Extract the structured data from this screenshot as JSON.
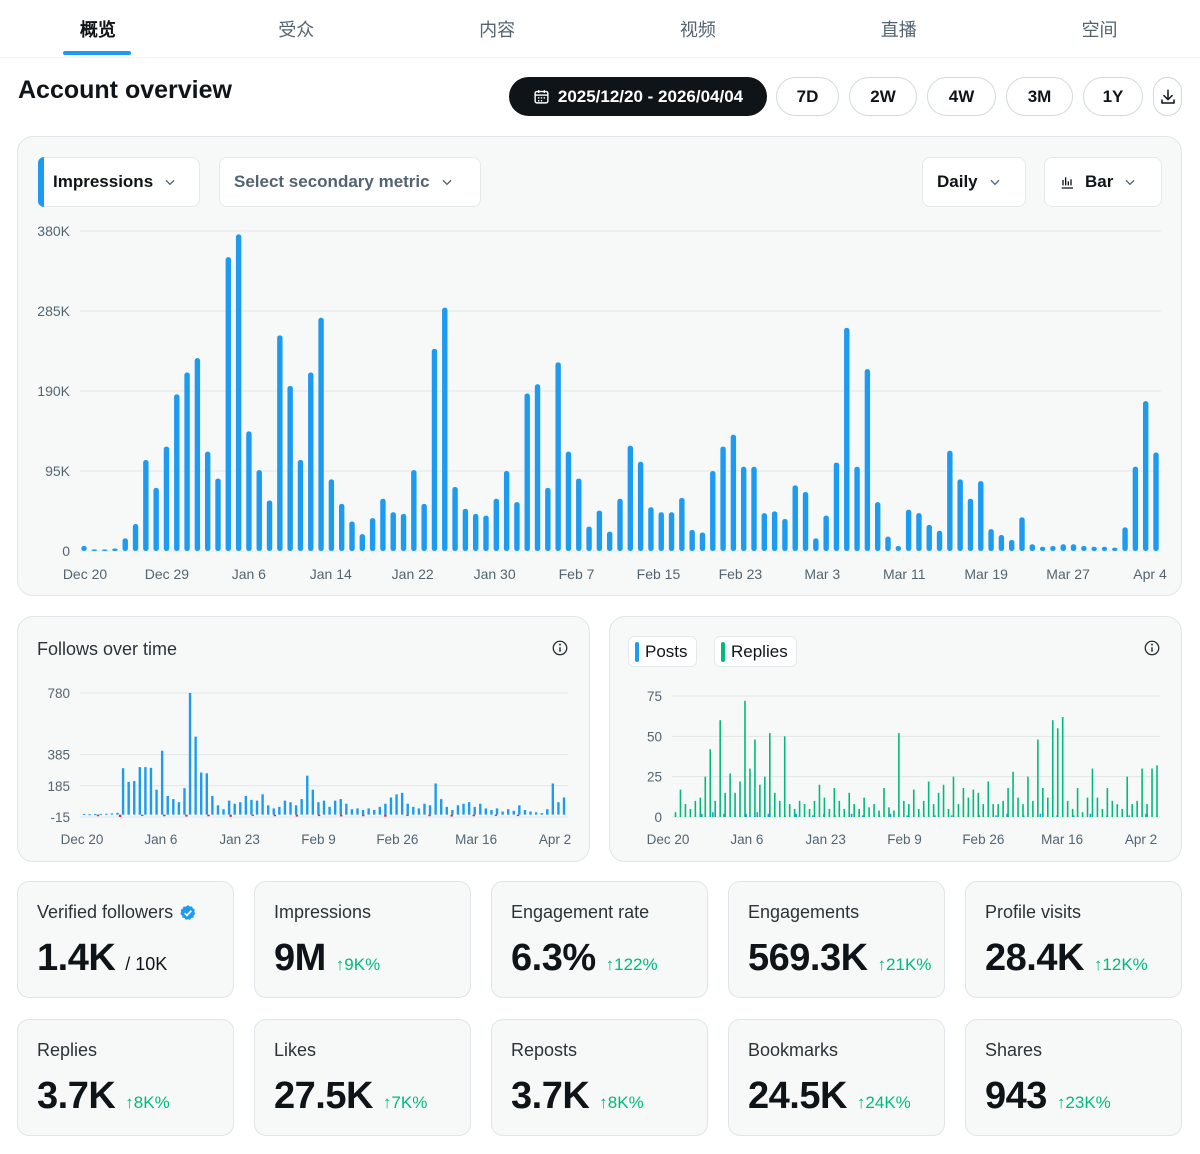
{
  "tabs": [
    "概览",
    "受众",
    "内容",
    "视频",
    "直播",
    "空间"
  ],
  "header": {
    "title": "Account overview",
    "date_range": "2025/12/20 - 2026/04/04",
    "ranges": [
      "7D",
      "2W",
      "4W",
      "3M",
      "1Y"
    ]
  },
  "main_chart": {
    "primary_metric": "Impressions",
    "secondary_metric": "Select secondary metric",
    "interval": "Daily",
    "chart_type": "Bar"
  },
  "follows": {
    "title": "Follows over time"
  },
  "posts_replies": {
    "legend": [
      "Posts",
      "Replies"
    ]
  },
  "colors": {
    "accent": "#1d9bf0",
    "replies": "#00ba7c",
    "positive": "#00ba7c",
    "negative": "#f4212e",
    "dark": "#0f1419"
  },
  "chart_data": [
    {
      "type": "bar",
      "title": "Impressions",
      "ylim": [
        0,
        380000
      ],
      "yticks": [
        "0",
        "95K",
        "190K",
        "285K",
        "380K"
      ],
      "ytick_values": [
        0,
        95000,
        190000,
        285000,
        380000
      ],
      "xticks": [
        "Dec 20",
        "Dec 29",
        "Jan 6",
        "Jan 14",
        "Jan 22",
        "Jan 30",
        "Feb 7",
        "Feb 15",
        "Feb 23",
        "Mar 3",
        "Mar 11",
        "Mar 19",
        "Mar 27",
        "Apr 4"
      ],
      "values": [
        6,
        2,
        2,
        3,
        15,
        32,
        108,
        75,
        124,
        186,
        212,
        229,
        118,
        86,
        349,
        376,
        142,
        96,
        60,
        256,
        196,
        108,
        212,
        277,
        85,
        56,
        35,
        20,
        39,
        62,
        46,
        44,
        96,
        56,
        240,
        289,
        76,
        50,
        44,
        42,
        62,
        95,
        58,
        187,
        198,
        75,
        224,
        118,
        86,
        29,
        48,
        23,
        62,
        125,
        106,
        52,
        46,
        46,
        63,
        25,
        22,
        95,
        124,
        138,
        100,
        100,
        45,
        47,
        38,
        78,
        70,
        15,
        42,
        105,
        265,
        100,
        216,
        58,
        17,
        6,
        49,
        45,
        31,
        24,
        119,
        85,
        62,
        83,
        26,
        19,
        13,
        40,
        8,
        5,
        6,
        8,
        8,
        6,
        5,
        5,
        4,
        28,
        100,
        178,
        117
      ]
    },
    {
      "type": "bar",
      "title": "Follows over time",
      "ylim": [
        -15,
        780
      ],
      "yticks": [
        "-15",
        "185",
        "385",
        "780"
      ],
      "ytick_values": [
        -15,
        185,
        385,
        780
      ],
      "xticks": [
        "Dec 20",
        "Jan 6",
        "Jan 23",
        "Feb 9",
        "Feb 26",
        "Mar 16",
        "Apr 2"
      ],
      "values": [
        5,
        3,
        4,
        5,
        6,
        8,
        12,
        298,
        210,
        215,
        305,
        305,
        300,
        160,
        410,
        120,
        100,
        80,
        170,
        780,
        500,
        270,
        265,
        120,
        60,
        35,
        90,
        70,
        80,
        120,
        95,
        90,
        130,
        60,
        40,
        50,
        90,
        80,
        60,
        100,
        250,
        160,
        80,
        90,
        50,
        90,
        100,
        70,
        35,
        40,
        30,
        40,
        30,
        50,
        70,
        110,
        130,
        140,
        70,
        50,
        40,
        70,
        60,
        200,
        100,
        50,
        30,
        60,
        70,
        80,
        50,
        70,
        40,
        30,
        40,
        20,
        35,
        25,
        60,
        30,
        20,
        15,
        10,
        35,
        200,
        80,
        110
      ],
      "negatives": [
        -10,
        -15,
        -8,
        -10,
        -12,
        -10,
        -14,
        -8,
        -10,
        -12,
        -9,
        -11,
        -10,
        -13,
        -8,
        -10,
        -12,
        -10,
        -8,
        -9
      ]
    },
    {
      "type": "bar",
      "title": "Posts / Replies",
      "ylim": [
        0,
        75
      ],
      "yticks": [
        "0",
        "25",
        "50",
        "75"
      ],
      "ytick_values": [
        0,
        25,
        50,
        75
      ],
      "xticks": [
        "Dec 20",
        "Jan 6",
        "Jan 23",
        "Feb 9",
        "Feb 26",
        "Mar 16",
        "Apr 2"
      ],
      "series": [
        {
          "name": "Posts",
          "values": [
            0,
            0,
            0,
            0,
            0,
            2,
            0,
            3,
            0,
            2,
            0,
            1,
            0,
            2,
            0,
            3,
            0,
            2,
            0,
            0,
            1,
            0,
            2,
            0,
            0,
            1,
            0,
            2,
            0,
            1,
            0,
            0,
            2,
            0,
            1,
            0,
            0,
            1,
            0,
            2,
            0,
            0,
            1,
            0,
            0,
            2,
            0,
            1,
            0,
            0,
            1,
            0,
            0,
            2,
            0,
            1,
            0,
            0,
            1,
            0,
            2,
            0,
            0,
            1,
            0,
            0,
            2,
            0,
            0,
            1,
            0,
            0,
            1,
            0,
            0,
            2,
            0,
            0,
            1,
            0,
            0,
            0,
            1,
            0,
            0,
            2,
            0,
            1
          ]
        },
        {
          "name": "Replies",
          "values": [
            3,
            17,
            8,
            5,
            10,
            12,
            25,
            42,
            10,
            60,
            15,
            27,
            15,
            22,
            72,
            30,
            48,
            20,
            25,
            52,
            15,
            10,
            50,
            8,
            5,
            10,
            8,
            5,
            10,
            20,
            12,
            5,
            18,
            10,
            5,
            15,
            8,
            5,
            12,
            6,
            8,
            4,
            18,
            6,
            4,
            52,
            10,
            8,
            17,
            5,
            10,
            22,
            8,
            15,
            20,
            5,
            25,
            8,
            18,
            12,
            17,
            15,
            8,
            22,
            8,
            8,
            10,
            18,
            28,
            12,
            8,
            25,
            10,
            48,
            18,
            12,
            60,
            55,
            62,
            10,
            5,
            18,
            3,
            12,
            30,
            12,
            5,
            18,
            10,
            8,
            5,
            25,
            8,
            10,
            30,
            8,
            30,
            32
          ]
        }
      ]
    }
  ],
  "stats": [
    {
      "label": "Verified followers",
      "value": "1.4K",
      "sub": "/ 10K",
      "delta": "",
      "verified": true
    },
    {
      "label": "Impressions",
      "value": "9M",
      "sub": "",
      "delta": "9K%"
    },
    {
      "label": "Engagement rate",
      "value": "6.3%",
      "sub": "",
      "delta": "122%"
    },
    {
      "label": "Engagements",
      "value": "569.3K",
      "sub": "",
      "delta": "21K%"
    },
    {
      "label": "Profile visits",
      "value": "28.4K",
      "sub": "",
      "delta": "12K%"
    },
    {
      "label": "Replies",
      "value": "3.7K",
      "sub": "",
      "delta": "8K%"
    },
    {
      "label": "Likes",
      "value": "27.5K",
      "sub": "",
      "delta": "7K%"
    },
    {
      "label": "Reposts",
      "value": "3.7K",
      "sub": "",
      "delta": "8K%"
    },
    {
      "label": "Bookmarks",
      "value": "24.5K",
      "sub": "",
      "delta": "24K%"
    },
    {
      "label": "Shares",
      "value": "943",
      "sub": "",
      "delta": "23K%"
    }
  ]
}
